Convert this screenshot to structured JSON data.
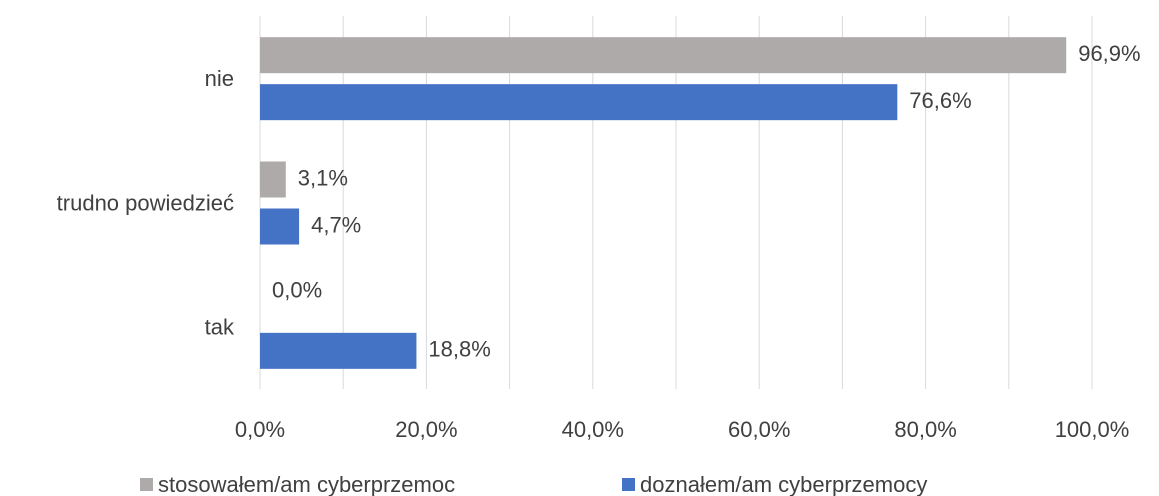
{
  "chart_data": {
    "type": "hbar",
    "categories": [
      "nie",
      "trudno powiedzieć",
      "tak"
    ],
    "series": [
      {
        "name": "stosowałem/am cyberprzemoc",
        "color": "#aeaaaa",
        "values": [
          96.9,
          3.1,
          0.0
        ],
        "value_labels": [
          "96,9%",
          "3,1%",
          "0,0%"
        ]
      },
      {
        "name": "doznałem/am cyberprzemocy",
        "color": "#4472c4",
        "values": [
          76.6,
          4.7,
          18.8
        ],
        "value_labels": [
          "76,6%",
          "4,7%",
          "18,8%"
        ]
      }
    ],
    "xlim": [
      0,
      100
    ],
    "xticks": [
      {
        "value": 0,
        "label": "0,0%"
      },
      {
        "value": 20,
        "label": "20,0%"
      },
      {
        "value": 40,
        "label": "40,0%"
      },
      {
        "value": 60,
        "label": "60,0%"
      },
      {
        "value": 80,
        "label": "80,0%"
      },
      {
        "value": 100,
        "label": "100,0%"
      }
    ],
    "xminor": [
      10,
      30,
      50,
      70,
      90
    ],
    "grid": true,
    "legend": "bottom"
  }
}
